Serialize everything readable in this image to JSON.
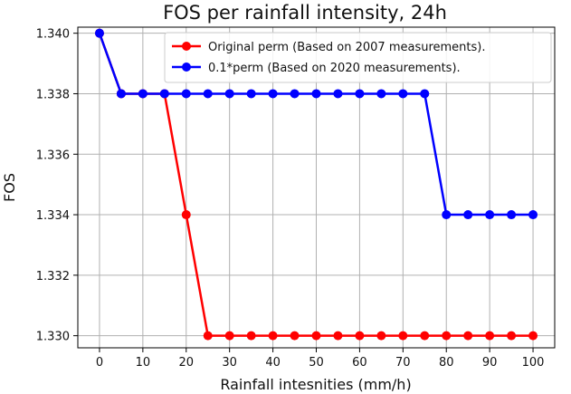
{
  "chart_data": {
    "type": "line",
    "title": "FOS per rainfall intensity, 24h",
    "xlabel": "Rainfall intesnities (mm/h)",
    "ylabel": "FOS",
    "xlim": [
      -5,
      105
    ],
    "ylim": [
      1.3296,
      1.3402
    ],
    "xticks": [
      0,
      10,
      20,
      30,
      40,
      50,
      60,
      70,
      80,
      90,
      100
    ],
    "yticks": [
      1.33,
      1.332,
      1.334,
      1.336,
      1.338,
      1.34
    ],
    "ytick_labels": [
      "1.330",
      "1.332",
      "1.334",
      "1.336",
      "1.338",
      "1.340"
    ],
    "grid": true,
    "legend_position": "top-right",
    "x": [
      0,
      5,
      10,
      15,
      20,
      25,
      30,
      35,
      40,
      45,
      50,
      55,
      60,
      65,
      70,
      75,
      80,
      85,
      90,
      95,
      100
    ],
    "series": [
      {
        "name": "Original perm (Based on 2007 measurements).",
        "color": "#ff0000",
        "values": [
          1.34,
          1.338,
          1.338,
          1.338,
          1.334,
          1.33,
          1.33,
          1.33,
          1.33,
          1.33,
          1.33,
          1.33,
          1.33,
          1.33,
          1.33,
          1.33,
          1.33,
          1.33,
          1.33,
          1.33,
          1.33
        ]
      },
      {
        "name": "0.1*perm (Based on 2020 measurements).",
        "color": "#0000ff",
        "values": [
          1.34,
          1.338,
          1.338,
          1.338,
          1.338,
          1.338,
          1.338,
          1.338,
          1.338,
          1.338,
          1.338,
          1.338,
          1.338,
          1.338,
          1.338,
          1.338,
          1.334,
          1.334,
          1.334,
          1.334,
          1.334
        ]
      }
    ]
  }
}
